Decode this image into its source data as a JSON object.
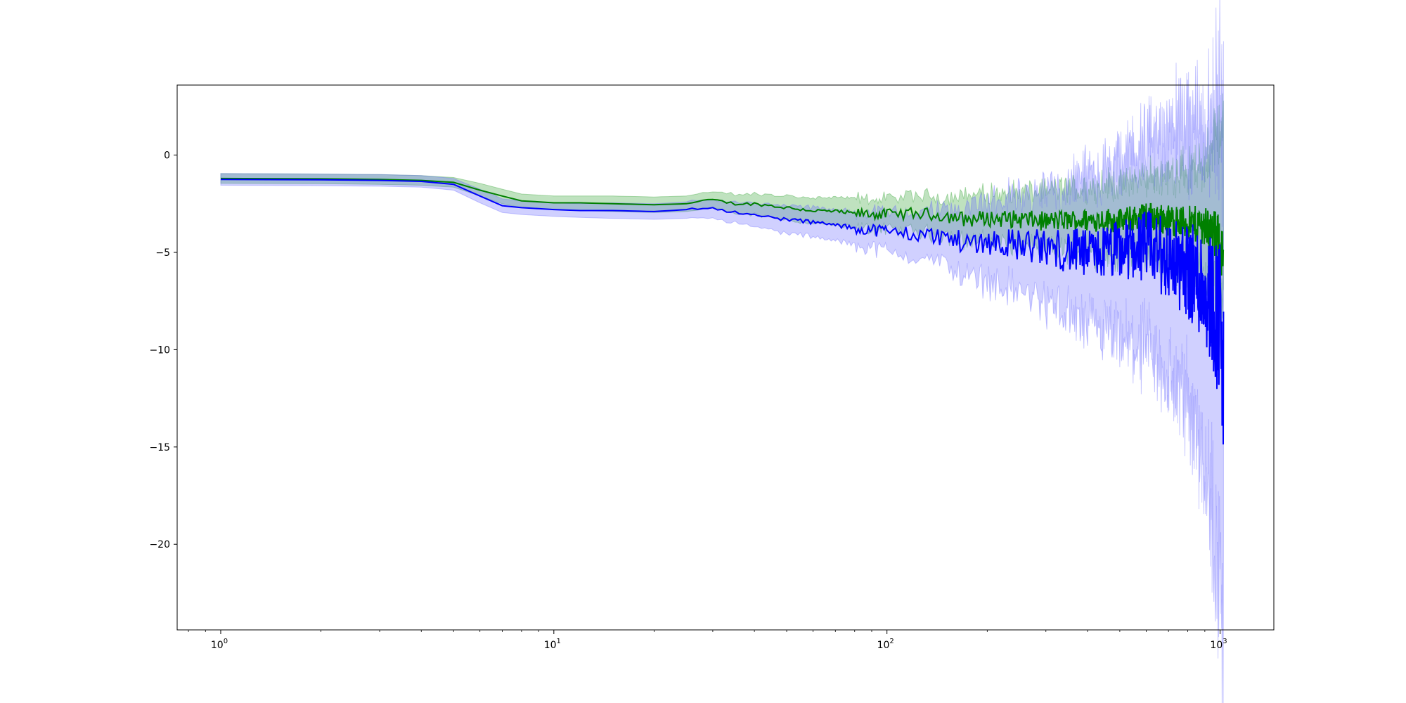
{
  "chart_data": {
    "type": "line",
    "xscale": "log",
    "xlim": [
      0.74,
      1450
    ],
    "ylim": [
      -24.4,
      3.6
    ],
    "x_tick_labels": [
      {
        "base": "10",
        "exp": "0",
        "value": 1
      },
      {
        "base": "10",
        "exp": "1",
        "value": 10
      },
      {
        "base": "10",
        "exp": "2",
        "value": 100
      },
      {
        "base": "10",
        "exp": "3",
        "value": 1000
      }
    ],
    "y_ticks": [
      0,
      -5,
      -10,
      -15,
      -20
    ],
    "y_tick_labels": [
      "0",
      "−5",
      "−10",
      "−15",
      "−20"
    ],
    "grid": false,
    "series": [
      {
        "color": "#008000",
        "band_color": "#2ca02c",
        "x": [
          1,
          2,
          3,
          4,
          5,
          6,
          7,
          8,
          10,
          12,
          15,
          20,
          25,
          30,
          35,
          40,
          50,
          60,
          70,
          80,
          100,
          120,
          150,
          170,
          200,
          250,
          300,
          350,
          400,
          450,
          500,
          600,
          700,
          800,
          900,
          1000,
          1024
        ],
        "y": [
          -1.2,
          -1.22,
          -1.25,
          -1.3,
          -1.4,
          -1.8,
          -2.1,
          -2.35,
          -2.45,
          -2.45,
          -2.5,
          -2.55,
          -2.5,
          -2.3,
          -2.5,
          -2.5,
          -2.7,
          -2.85,
          -2.9,
          -3.0,
          -3.05,
          -3.0,
          -3.1,
          -3.3,
          -3.25,
          -3.3,
          -3.4,
          -3.35,
          -3.35,
          -3.3,
          -3.4,
          -3.1,
          -3.35,
          -3.5,
          -3.6,
          -4.5,
          -5.5
        ],
        "lower": [
          -1.45,
          -1.47,
          -1.5,
          -1.55,
          -1.65,
          -2.1,
          -2.5,
          -2.7,
          -2.8,
          -2.85,
          -2.9,
          -2.95,
          -2.9,
          -2.75,
          -3.0,
          -3.05,
          -3.3,
          -3.5,
          -3.6,
          -3.75,
          -3.85,
          -3.9,
          -4.1,
          -4.4,
          -4.4,
          -4.6,
          -4.8,
          -4.9,
          -5.0,
          -5.1,
          -5.3,
          -5.2,
          -5.6,
          -5.9,
          -6.2,
          -7.0,
          -8.0
        ],
        "upper": [
          -0.95,
          -0.97,
          -1.0,
          -1.05,
          -1.15,
          -1.45,
          -1.75,
          -2.0,
          -2.1,
          -2.1,
          -2.1,
          -2.15,
          -2.1,
          -1.9,
          -2.0,
          -2.0,
          -2.1,
          -2.2,
          -2.2,
          -2.25,
          -2.25,
          -2.15,
          -2.1,
          -2.1,
          -2.0,
          -1.9,
          -1.9,
          -1.75,
          -1.7,
          -1.5,
          -1.5,
          -1.1,
          -1.0,
          -0.8,
          -0.5,
          1.5,
          2.1
        ]
      },
      {
        "color": "#0000ff",
        "band_color": "#6464ff",
        "x": [
          1,
          2,
          3,
          4,
          5,
          6,
          7,
          8,
          10,
          12,
          15,
          20,
          25,
          30,
          35,
          40,
          50,
          60,
          70,
          80,
          100,
          120,
          150,
          170,
          200,
          250,
          300,
          350,
          400,
          450,
          500,
          600,
          700,
          800,
          900,
          950,
          1000,
          1024
        ],
        "y": [
          -1.25,
          -1.27,
          -1.3,
          -1.35,
          -1.5,
          -2.1,
          -2.6,
          -2.7,
          -2.8,
          -2.85,
          -2.85,
          -2.9,
          -2.8,
          -2.7,
          -2.95,
          -3.1,
          -3.3,
          -3.45,
          -3.6,
          -3.75,
          -3.9,
          -4.05,
          -4.2,
          -4.5,
          -4.4,
          -4.6,
          -4.8,
          -4.9,
          -5.1,
          -5.0,
          -4.9,
          -4.6,
          -5.4,
          -5.9,
          -6.8,
          -7.5,
          -8.5,
          -12.0
        ],
        "lower": [
          -1.55,
          -1.57,
          -1.6,
          -1.65,
          -1.8,
          -2.45,
          -2.95,
          -3.05,
          -3.15,
          -3.2,
          -3.25,
          -3.3,
          -3.25,
          -3.2,
          -3.5,
          -3.7,
          -4.0,
          -4.2,
          -4.4,
          -4.6,
          -4.9,
          -5.2,
          -5.6,
          -6.2,
          -6.4,
          -7.0,
          -7.6,
          -8.2,
          -8.8,
          -9.2,
          -9.6,
          -10.0,
          -11.5,
          -12.5,
          -15.5,
          -19.0,
          -22.0,
          -23.2
        ],
        "upper": [
          -0.95,
          -0.97,
          -1.0,
          -1.05,
          -1.2,
          -1.75,
          -2.25,
          -2.35,
          -2.45,
          -2.5,
          -2.45,
          -2.5,
          -2.4,
          -2.25,
          -2.4,
          -2.5,
          -2.6,
          -2.7,
          -2.8,
          -2.9,
          -2.9,
          -2.9,
          -2.8,
          -2.8,
          -2.4,
          -2.2,
          -2.0,
          -1.6,
          -1.4,
          -0.9,
          -0.4,
          0.5,
          1.2,
          1.6,
          1.5,
          1.8,
          2.2,
          1.5
        ]
      }
    ]
  }
}
